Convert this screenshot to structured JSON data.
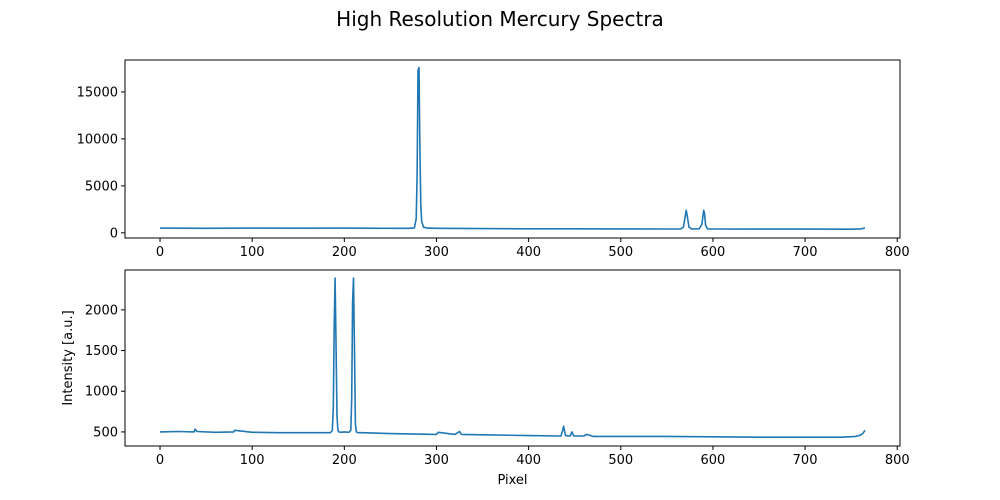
{
  "figure_title": "High Resolution Mercury Spectra",
  "chart_data": [
    {
      "type": "line",
      "title": "",
      "xlabel": "",
      "ylabel": "",
      "xlim": [
        -38,
        803
      ],
      "ylim": [
        -550,
        18400
      ],
      "x_ticks": [
        0,
        100,
        200,
        300,
        400,
        500,
        600,
        700,
        800
      ],
      "x_tick_labels": [
        "0",
        "100",
        "200",
        "300",
        "400",
        "500",
        "600",
        "700",
        "800"
      ],
      "y_ticks": [
        0,
        5000,
        10000,
        15000
      ],
      "y_tick_labels": [
        "0",
        "5000",
        "10000",
        "15000"
      ],
      "grid": false,
      "color": "#1f77b4",
      "series": [
        {
          "x": [
            0,
            50,
            100,
            150,
            200,
            250,
            270,
            276,
            278,
            279,
            280,
            281,
            282,
            283,
            284,
            286,
            290,
            300,
            350,
            400,
            450,
            500,
            550,
            565,
            568,
            570,
            571,
            572,
            574,
            577,
            585,
            588,
            590,
            591,
            592,
            594,
            597,
            650,
            700,
            750,
            760,
            765
          ],
          "y": [
            500,
            480,
            500,
            490,
            500,
            480,
            480,
            520,
            1500,
            6000,
            17300,
            17600,
            9000,
            3000,
            1200,
            600,
            500,
            480,
            450,
            430,
            430,
            420,
            410,
            420,
            600,
            1800,
            2400,
            1900,
            600,
            420,
            430,
            900,
            2400,
            2000,
            800,
            430,
            420,
            400,
            400,
            390,
            420,
            500
          ]
        }
      ]
    },
    {
      "type": "line",
      "title": "",
      "xlabel": "Pixel",
      "ylabel": "Intensity [a.u.]",
      "xlim": [
        -38,
        803
      ],
      "ylim": [
        327,
        2490
      ],
      "x_ticks": [
        0,
        100,
        200,
        300,
        400,
        500,
        600,
        700,
        800
      ],
      "x_tick_labels": [
        "0",
        "100",
        "200",
        "300",
        "400",
        "500",
        "600",
        "700",
        "800"
      ],
      "y_ticks": [
        500,
        1000,
        1500,
        2000
      ],
      "y_tick_labels": [
        "500",
        "1000",
        "1500",
        "2000"
      ],
      "grid": false,
      "color": "#1f77b4",
      "series": [
        {
          "x": [
            0,
            20,
            37,
            38,
            40,
            60,
            80,
            81,
            100,
            130,
            160,
            185,
            187,
            188,
            189,
            190,
            191,
            192,
            193,
            194,
            196,
            200,
            205,
            207,
            208,
            209,
            210,
            211,
            212,
            213,
            215,
            220,
            250,
            300,
            302,
            320,
            325,
            327,
            350,
            400,
            435,
            437,
            438,
            440,
            445,
            447,
            449,
            460,
            463,
            470,
            500,
            550,
            600,
            650,
            700,
            740,
            755,
            760,
            763,
            765
          ],
          "y": [
            500,
            505,
            500,
            535,
            505,
            495,
            500,
            520,
            495,
            490,
            490,
            490,
            520,
            800,
            1800,
            2390,
            1600,
            700,
            520,
            500,
            495,
            500,
            495,
            520,
            900,
            2100,
            2390,
            1500,
            600,
            500,
            490,
            490,
            480,
            470,
            495,
            470,
            505,
            470,
            465,
            455,
            450,
            520,
            570,
            455,
            450,
            500,
            450,
            450,
            470,
            445,
            445,
            445,
            440,
            435,
            435,
            435,
            445,
            460,
            485,
            520
          ]
        }
      ]
    }
  ]
}
